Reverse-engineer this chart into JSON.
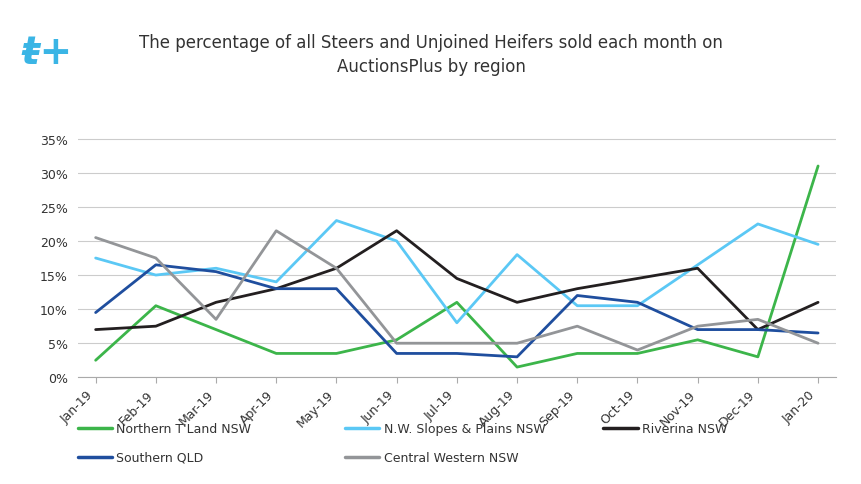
{
  "title": "The percentage of all Steers and Unjoined Heifers sold each month on\nAuctionsPlus by region",
  "months": [
    "Jan-19",
    "Feb-19",
    "Mar-19",
    "Apr-19",
    "May-19",
    "Jun-19",
    "Jul-19",
    "Aug-19",
    "Sep-19",
    "Oct-19",
    "Nov-19",
    "Dec-19",
    "Jan-20"
  ],
  "series": [
    {
      "label": "Northern T'Land NSW",
      "color": "#3cb54a",
      "data": [
        2.5,
        10.5,
        7.0,
        3.5,
        3.5,
        5.5,
        11.0,
        1.5,
        3.5,
        3.5,
        5.5,
        3.0,
        31.0
      ]
    },
    {
      "label": "N.W. Slopes & Plains NSW",
      "color": "#5bc8f5",
      "data": [
        17.5,
        15.0,
        16.0,
        14.0,
        23.0,
        20.0,
        8.0,
        18.0,
        10.5,
        10.5,
        16.5,
        22.5,
        19.5
      ]
    },
    {
      "label": "Riverina NSW",
      "color": "#231f20",
      "data": [
        7.0,
        7.5,
        11.0,
        13.0,
        16.0,
        21.5,
        14.5,
        11.0,
        13.0,
        14.5,
        16.0,
        7.0,
        11.0
      ]
    },
    {
      "label": "Southern QLD",
      "color": "#1f4e9e",
      "data": [
        9.5,
        16.5,
        15.5,
        13.0,
        13.0,
        3.5,
        3.5,
        3.0,
        12.0,
        11.0,
        7.0,
        7.0,
        6.5
      ]
    },
    {
      "label": "Central Western NSW",
      "color": "#939598",
      "data": [
        20.5,
        17.5,
        8.5,
        21.5,
        16.0,
        5.0,
        5.0,
        5.0,
        7.5,
        4.0,
        7.5,
        8.5,
        5.0
      ]
    }
  ],
  "ylim": [
    0,
    0.37
  ],
  "yticks": [
    0.0,
    0.05,
    0.1,
    0.15,
    0.2,
    0.25,
    0.3,
    0.35
  ],
  "ytick_labels": [
    "0%",
    "5%",
    "10%",
    "15%",
    "20%",
    "25%",
    "30%",
    "35%"
  ],
  "background_color": "#ffffff",
  "grid_color": "#cccccc",
  "title_fontsize": 12,
  "legend_fontsize": 9,
  "tick_fontsize": 9,
  "line_width": 2.0
}
